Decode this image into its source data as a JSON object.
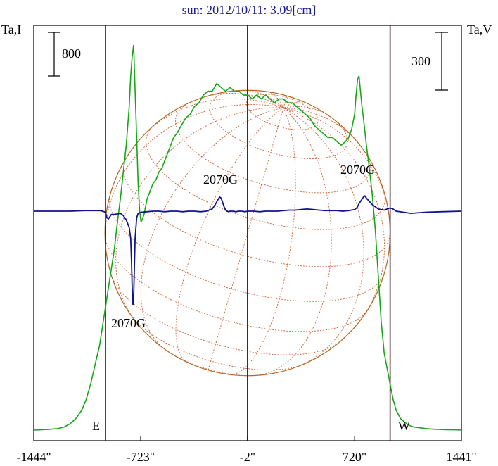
{
  "chart_data": {
    "type": "line",
    "title": "sun: 2012/10/11: 3.09[cm]",
    "left_axis_label": "Ta,I",
    "right_axis_label": "Ta,V",
    "x_tick_labels": [
      "-1444\"",
      "-723\"",
      "-2\"",
      "720\"",
      "1441\""
    ],
    "x_ticks": [
      -1444,
      -723,
      -2,
      720,
      1441
    ],
    "xlim": [
      -1444,
      1441
    ],
    "limb_markers": {
      "east": "E",
      "west": "W"
    },
    "limb_positions": [
      -960,
      960
    ],
    "center_line": -2,
    "scale_bars": {
      "left": {
        "label": "800",
        "value": 800
      },
      "right": {
        "label": "300",
        "value": 300
      }
    },
    "annotations": [
      {
        "text": "2070G",
        "x": -770
      },
      {
        "text": "2070G",
        "x": -165
      },
      {
        "text": "2070G",
        "x": 770
      }
    ],
    "disk_radius": 960,
    "series": [
      {
        "name": "I",
        "color": "#16a616",
        "x": [
          -1444,
          -1400,
          -1340,
          -1280,
          -1240,
          -1200,
          -1160,
          -1120,
          -1090,
          -1060,
          -1030,
          -1000,
          -980,
          -960,
          -940,
          -920,
          -900,
          -880,
          -860,
          -840,
          -820,
          -800,
          -790,
          -780,
          -770,
          -760,
          -750,
          -740,
          -730,
          -720,
          -700,
          -680,
          -660,
          -640,
          -620,
          -600,
          -580,
          -560,
          -540,
          -520,
          -500,
          -480,
          -450,
          -420,
          -390,
          -360,
          -330,
          -300,
          -270,
          -240,
          -210,
          -180,
          -150,
          -120,
          -90,
          -60,
          -30,
          0,
          30,
          60,
          90,
          120,
          150,
          180,
          210,
          240,
          270,
          300,
          330,
          360,
          390,
          420,
          450,
          480,
          510,
          540,
          570,
          600,
          630,
          660,
          680,
          700,
          720,
          730,
          740,
          750,
          760,
          770,
          780,
          800,
          820,
          840,
          860,
          880,
          900,
          920,
          940,
          960,
          980,
          1000,
          1030,
          1060,
          1090,
          1120,
          1160,
          1200,
          1240,
          1280,
          1340,
          1400,
          1441
        ],
        "values": [
          0,
          4,
          10,
          20,
          40,
          80,
          150,
          260,
          400,
          600,
          850,
          1100,
          1350,
          1600,
          1850,
          2100,
          2350,
          2700,
          3000,
          3350,
          3700,
          4200,
          4600,
          4850,
          5000,
          4400,
          3800,
          3200,
          2850,
          2700,
          2800,
          3000,
          3100,
          3200,
          3250,
          3350,
          3400,
          3500,
          3600,
          3700,
          3800,
          3850,
          3950,
          4050,
          4100,
          4200,
          4250,
          4350,
          4400,
          4400,
          4500,
          4450,
          4400,
          4450,
          4400,
          4400,
          4350,
          4350,
          4300,
          4350,
          4300,
          4350,
          4300,
          4250,
          4300,
          4300,
          4250,
          4250,
          4200,
          4150,
          4100,
          4050,
          3950,
          3900,
          3850,
          3800,
          3800,
          3750,
          3700,
          3750,
          3800,
          3900,
          4100,
          4350,
          4550,
          4600,
          4400,
          4200,
          4050,
          3700,
          3400,
          3050,
          2600,
          2000,
          1400,
          1000,
          800,
          600,
          400,
          260,
          150,
          100,
          60,
          40,
          30,
          20,
          15,
          10,
          5,
          4,
          0
        ]
      },
      {
        "name": "V",
        "color": "#10148c",
        "x": [
          -1444,
          -1300,
          -1200,
          -1100,
          -1000,
          -980,
          -960,
          -950,
          -940,
          -930,
          -920,
          -900,
          -880,
          -860,
          -840,
          -820,
          -800,
          -790,
          -785,
          -780,
          -775,
          -770,
          -765,
          -760,
          -750,
          -740,
          -720,
          -680,
          -640,
          -600,
          -560,
          -520,
          -480,
          -440,
          -400,
          -360,
          -320,
          -280,
          -240,
          -220,
          -200,
          -190,
          -180,
          -170,
          -160,
          -150,
          -140,
          -130,
          -120,
          -100,
          -80,
          -60,
          -40,
          -20,
          0,
          40,
          80,
          120,
          160,
          200,
          240,
          280,
          320,
          360,
          400,
          440,
          480,
          520,
          560,
          600,
          640,
          680,
          700,
          720,
          730,
          740,
          750,
          760,
          770,
          780,
          790,
          800,
          820,
          840,
          860,
          880,
          900,
          920,
          940,
          960,
          980,
          1000,
          1050,
          1100,
          1200,
          1300,
          1441
        ],
        "values": [
          0,
          0,
          0,
          5,
          5,
          0,
          -10,
          -60,
          -70,
          -50,
          -30,
          -30,
          -25,
          -20,
          -40,
          -80,
          -150,
          -250,
          -450,
          -700,
          -860,
          -800,
          -500,
          -250,
          -60,
          -20,
          -10,
          -5,
          0,
          0,
          -5,
          0,
          0,
          -5,
          0,
          0,
          -5,
          0,
          20,
          60,
          110,
          130,
          120,
          80,
          40,
          10,
          0,
          -5,
          0,
          0,
          -5,
          0,
          0,
          -5,
          0,
          0,
          -5,
          0,
          0,
          0,
          5,
          10,
          10,
          15,
          20,
          15,
          10,
          5,
          5,
          5,
          0,
          5,
          10,
          15,
          25,
          40,
          70,
          90,
          110,
          130,
          140,
          120,
          90,
          60,
          40,
          20,
          15,
          10,
          20,
          30,
          20,
          0,
          -10,
          -20,
          -10,
          -5,
          0
        ]
      }
    ],
    "grid": false
  }
}
